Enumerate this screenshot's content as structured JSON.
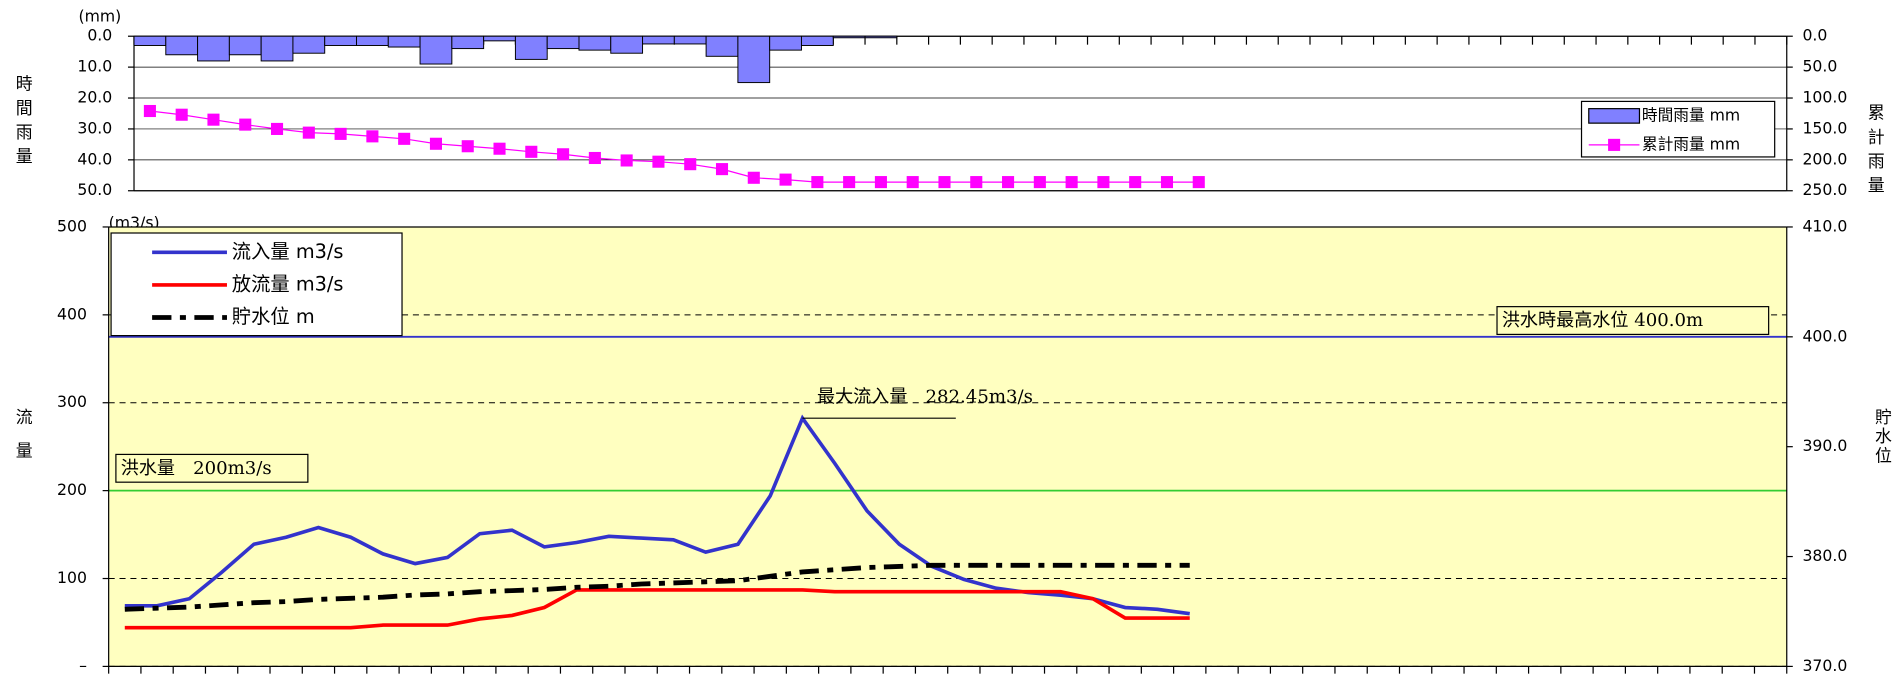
{
  "chart_data": [
    {
      "type": "bar",
      "unit": "(mm)",
      "ylabel": "時間雨量",
      "y2label": "累計雨量",
      "ylim": [
        0,
        50
      ],
      "y_inverted": true,
      "yticks": [
        {
          "value": 0,
          "label": "0.0"
        },
        {
          "value": 10,
          "label": "10.0"
        },
        {
          "value": 20,
          "label": "20.0"
        },
        {
          "value": 30,
          "label": "30.0"
        },
        {
          "value": 40,
          "label": "40.0"
        },
        {
          "value": 50,
          "label": "50.0"
        }
      ],
      "y2lim": [
        0,
        250
      ],
      "y2ticks": [
        {
          "value": 0,
          "label": "0.0"
        },
        {
          "value": 50,
          "label": "50.0"
        },
        {
          "value": 100,
          "label": "100.0"
        },
        {
          "value": 150,
          "label": "150.0"
        },
        {
          "value": 200,
          "label": "200.0"
        },
        {
          "value": 250,
          "label": "250.0"
        }
      ],
      "grid": true,
      "legend": "right",
      "series": [
        {
          "name": "時間雨量 mm",
          "type": "bar",
          "color": "#8080ff",
          "values": [
            3,
            6,
            8,
            6,
            8,
            5.5,
            3,
            3,
            3.5,
            9,
            4,
            1.5,
            7.5,
            4,
            4.5,
            5.5,
            2.5,
            2.5,
            6.5,
            15,
            4.5,
            3,
            0.5,
            0.5,
            null,
            null,
            null,
            null,
            null,
            null,
            null,
            null,
            null,
            null,
            null,
            null,
            null,
            null,
            null,
            null,
            null,
            null,
            null,
            null,
            null,
            null,
            null,
            null,
            null,
            null,
            null,
            null
          ]
        },
        {
          "name": "累計雨量 mm",
          "type": "line",
          "axis": "y2",
          "color": "#ff00ff",
          "marker": "square",
          "values": [
            121,
            127,
            135,
            143,
            150,
            156,
            158,
            162,
            166,
            174,
            178,
            182,
            187,
            191,
            197,
            201,
            203,
            207,
            215,
            229,
            232,
            236,
            236,
            236,
            236,
            236,
            236,
            236,
            236,
            236,
            236,
            236,
            236,
            236,
            null,
            null,
            null,
            null,
            null,
            null,
            null,
            null,
            null,
            null,
            null,
            null,
            null,
            null,
            null,
            null,
            null,
            null
          ]
        }
      ]
    },
    {
      "type": "line",
      "unit": "(m3/s)",
      "ylabel": "流量",
      "y2label": "貯水位",
      "ylim": [
        0,
        500
      ],
      "yticks": [
        {
          "value": 0,
          "label": "–"
        },
        100,
        200,
        300,
        400,
        500
      ],
      "y2lim": [
        370,
        410
      ],
      "y2ticks": [
        {
          "value": 370,
          "label": "370.0"
        },
        {
          "value": 380,
          "label": "380.0"
        },
        {
          "value": 390,
          "label": "390.0"
        },
        {
          "value": 400,
          "label": "400.0"
        },
        {
          "value": 410,
          "label": "410.0"
        }
      ],
      "grid": true,
      "background": "#ffffc0",
      "legend": "upper left",
      "series": [
        {
          "name": "流入量 m3/s",
          "color": "#3333cc",
          "line_style": "solid",
          "values": [
            69,
            69,
            77,
            107,
            139,
            147,
            158,
            147,
            128,
            117,
            124,
            151,
            155,
            136,
            141,
            148,
            146,
            144,
            130,
            139,
            194,
            282.45,
            231,
            177,
            139,
            114,
            99,
            89,
            84,
            81,
            77,
            67,
            65,
            60,
            null,
            null,
            null,
            null,
            null,
            null,
            null,
            null,
            null,
            null,
            null,
            null,
            null,
            null,
            null,
            null,
            null,
            null
          ]
        },
        {
          "name": "放流量 m3/s",
          "color": "#ff0000",
          "line_style": "solid",
          "values": [
            44,
            44,
            44,
            44,
            44,
            44,
            44,
            44,
            47,
            47,
            47,
            54,
            58,
            67,
            87,
            87,
            87,
            87,
            87,
            87,
            87,
            87,
            85,
            85,
            85,
            85,
            85,
            85,
            85,
            85,
            77,
            55,
            55,
            55,
            null,
            null,
            null,
            null,
            null,
            null,
            null,
            null,
            null,
            null,
            null,
            null,
            null,
            null,
            null,
            null,
            null,
            null
          ]
        },
        {
          "name": "貯水位 m",
          "color": "#000000",
          "line_style": "dash-dot",
          "axis": "y2",
          "values": [
            375.2,
            375.3,
            375.4,
            375.6,
            375.8,
            375.9,
            376.1,
            376.2,
            376.3,
            376.5,
            376.6,
            376.8,
            376.9,
            377.0,
            377.2,
            377.3,
            377.5,
            377.6,
            377.7,
            377.8,
            378.2,
            378.6,
            378.8,
            379.0,
            379.1,
            379.2,
            379.2,
            379.2,
            379.2,
            379.2,
            379.2,
            379.2,
            379.2,
            379.2,
            null,
            null,
            null,
            null,
            null,
            null,
            null,
            null,
            null,
            null,
            null,
            null,
            null,
            null,
            null,
            null,
            null,
            null
          ]
        }
      ],
      "reference_lines": [
        {
          "label": "洪水量　200m3/s",
          "value": 200,
          "color": "#33cc33"
        },
        {
          "label": "洪水時最高水位 400.0m",
          "value": 400,
          "axis": "y2",
          "color": "#3333cc"
        }
      ],
      "annotations": [
        {
          "text": "最大流入量　282.45m3/s",
          "series": 0,
          "index": 21
        }
      ]
    }
  ]
}
